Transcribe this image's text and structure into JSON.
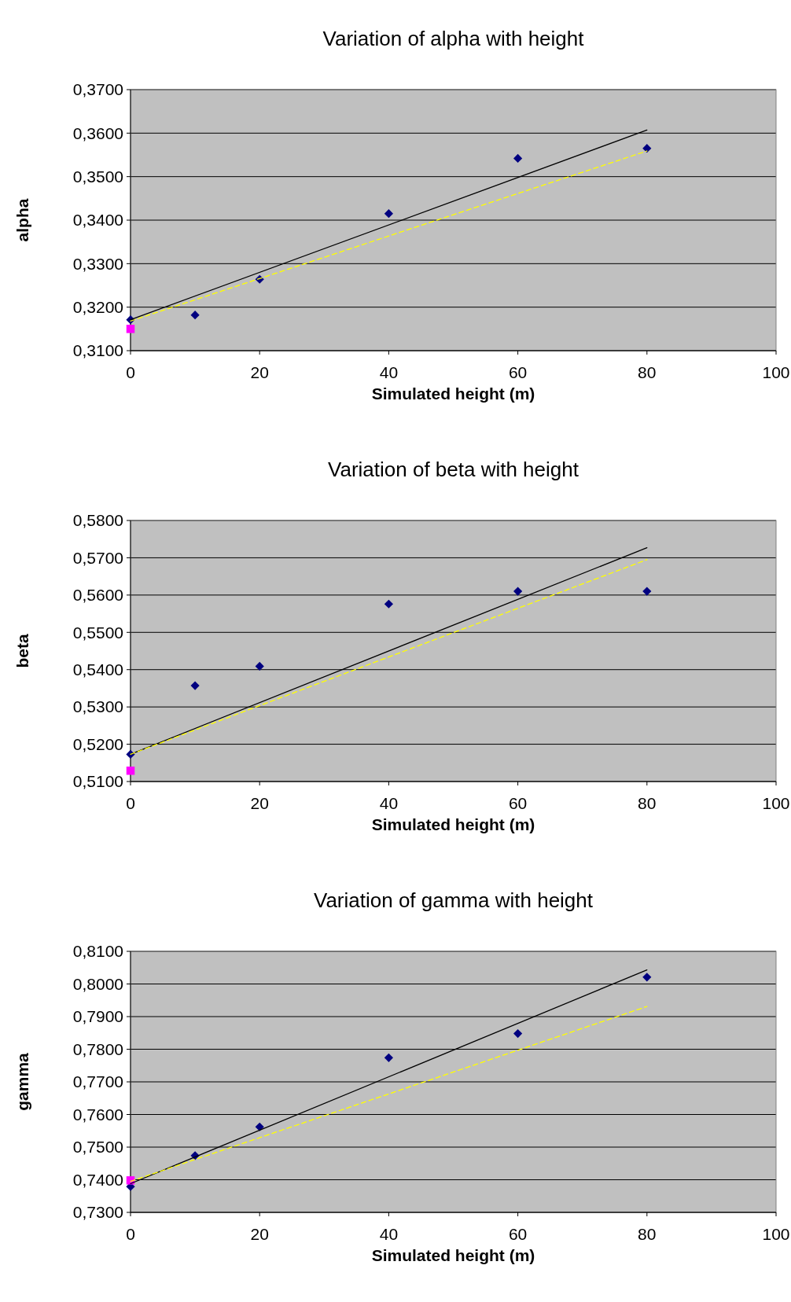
{
  "chart_data": [
    {
      "type": "scatter",
      "title": "Variation of alpha with height",
      "xlabel": "Simulated height (m)",
      "ylabel": "alpha",
      "xlim": [
        0,
        100
      ],
      "xticks": [
        0,
        20,
        40,
        60,
        80,
        100
      ],
      "ylim": [
        0.31,
        0.37
      ],
      "yticks": [
        {
          "value": 0.31,
          "label": "0,3100"
        },
        {
          "value": 0.32,
          "label": "0,3200"
        },
        {
          "value": 0.33,
          "label": "0,3300"
        },
        {
          "value": 0.34,
          "label": "0,3400"
        },
        {
          "value": 0.35,
          "label": "0,3500"
        },
        {
          "value": 0.36,
          "label": "0,3600"
        },
        {
          "value": 0.37,
          "label": "0,3700"
        }
      ],
      "grid": "y",
      "series": [
        {
          "type": "line",
          "color": "#000000",
          "line_style": "solid",
          "x": [
            0,
            80
          ],
          "values": [
            0.3171,
            0.3607
          ]
        },
        {
          "type": "line",
          "color": "#ffff00",
          "line_style": "dashed",
          "x": [
            0,
            80
          ],
          "values": [
            0.3168,
            0.3559
          ]
        },
        {
          "color": "#000080",
          "marker": "diamond",
          "x": [
            0,
            10,
            20,
            40,
            60,
            80
          ],
          "values": [
            0.3171,
            0.3182,
            0.3264,
            0.3415,
            0.3542,
            0.3565
          ]
        },
        {
          "type": "scatter",
          "color": "#ff00ff",
          "marker": "square",
          "x": [
            0
          ],
          "values": [
            0.315
          ]
        }
      ]
    },
    {
      "type": "scatter",
      "title": "Variation of beta with height",
      "xlabel": "Simulated height (m)",
      "ylabel": "beta",
      "xlim": [
        0,
        100
      ],
      "xticks": [
        0,
        20,
        40,
        60,
        80,
        100
      ],
      "ylim": [
        0.51,
        0.58
      ],
      "yticks": [
        {
          "value": 0.51,
          "label": "0,5100"
        },
        {
          "value": 0.52,
          "label": "0,5200"
        },
        {
          "value": 0.53,
          "label": "0,5300"
        },
        {
          "value": 0.54,
          "label": "0,5400"
        },
        {
          "value": 0.55,
          "label": "0,5500"
        },
        {
          "value": 0.56,
          "label": "0,5600"
        },
        {
          "value": 0.57,
          "label": "0,5700"
        },
        {
          "value": 0.58,
          "label": "0,5800"
        }
      ],
      "grid": "y",
      "series": [
        {
          "type": "line",
          "color": "#000000",
          "line_style": "solid",
          "x": [
            0,
            80
          ],
          "values": [
            0.5173,
            0.5727
          ]
        },
        {
          "type": "line",
          "color": "#ffff00",
          "line_style": "dashed",
          "x": [
            0,
            80
          ],
          "values": [
            0.5173,
            0.5695
          ]
        },
        {
          "color": "#000080",
          "marker": "diamond",
          "x": [
            0,
            10,
            20,
            40,
            60,
            80
          ],
          "values": [
            0.5173,
            0.5357,
            0.5409,
            0.5576,
            0.561,
            0.561
          ]
        },
        {
          "type": "scatter",
          "color": "#ff00ff",
          "marker": "square",
          "x": [
            0
          ],
          "values": [
            0.5129
          ]
        }
      ]
    },
    {
      "type": "scatter",
      "title": "Variation of gamma with height",
      "xlabel": "Simulated height (m)",
      "ylabel": "gamma",
      "xlim": [
        0,
        100
      ],
      "xticks": [
        0,
        20,
        40,
        60,
        80,
        100
      ],
      "ylim": [
        0.73,
        0.81
      ],
      "yticks": [
        {
          "value": 0.73,
          "label": "0,7300"
        },
        {
          "value": 0.74,
          "label": "0,7400"
        },
        {
          "value": 0.75,
          "label": "0,7500"
        },
        {
          "value": 0.76,
          "label": "0,7600"
        },
        {
          "value": 0.77,
          "label": "0,7700"
        },
        {
          "value": 0.78,
          "label": "0,7800"
        },
        {
          "value": 0.79,
          "label": "0,7900"
        },
        {
          "value": 0.8,
          "label": "0,8000"
        },
        {
          "value": 0.81,
          "label": "0,8100"
        }
      ],
      "grid": "y",
      "series": [
        {
          "type": "line",
          "color": "#000000",
          "line_style": "solid",
          "x": [
            0,
            80
          ],
          "values": [
            0.7388,
            0.8043
          ]
        },
        {
          "type": "line",
          "color": "#ffff00",
          "line_style": "dashed",
          "x": [
            0,
            80
          ],
          "values": [
            0.7395,
            0.7931
          ]
        },
        {
          "color": "#000080",
          "marker": "diamond",
          "x": [
            0,
            10,
            20,
            40,
            60,
            80
          ],
          "values": [
            0.7379,
            0.7474,
            0.7562,
            0.7774,
            0.7848,
            0.8021
          ]
        },
        {
          "type": "scatter",
          "color": "#ff00ff",
          "marker": "square",
          "x": [
            0
          ],
          "values": [
            0.7398
          ]
        }
      ]
    }
  ]
}
